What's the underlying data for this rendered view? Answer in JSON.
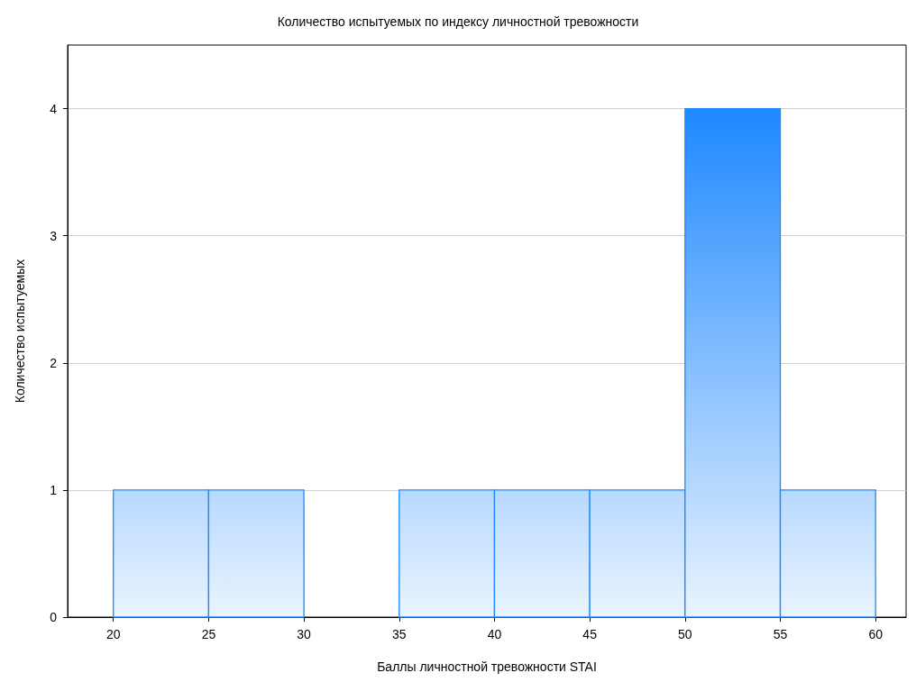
{
  "chart_data": {
    "type": "histogram",
    "title": "Количество испытуемых по индексу личностной тревожности",
    "xlabel": "Баллы личностной тревожности STAI",
    "ylabel": "Количество испытуемых",
    "bins": [
      20,
      25,
      30,
      35,
      40,
      45,
      50,
      55,
      60
    ],
    "values": [
      1,
      1,
      0,
      1,
      1,
      1,
      4,
      1
    ],
    "color": "#1e88ff",
    "xlim": [
      17.6,
      61.6
    ],
    "xticks": [
      20,
      25,
      30,
      35,
      40,
      45,
      50,
      55,
      60
    ],
    "ylim": [
      0,
      4.5
    ],
    "yticks": [
      0,
      1,
      2,
      3,
      4
    ],
    "grid": "y"
  }
}
